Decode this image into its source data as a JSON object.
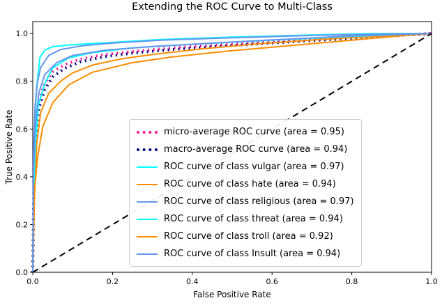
{
  "chart_data": {
    "type": "line",
    "title": "Extending the ROC Curve to Multi-Class",
    "xlabel": "False Positive Rate",
    "ylabel": "True Positive Rate",
    "xlim": [
      0,
      1.0
    ],
    "ylim": [
      0,
      1.05
    ],
    "x_ticks": [
      0.0,
      0.2,
      0.4,
      0.6,
      0.8,
      1.0
    ],
    "y_ticks": [
      0.0,
      0.2,
      0.4,
      0.6,
      0.8,
      1.0
    ],
    "grid": false,
    "legend_position": "inside lower-center-right",
    "reference_line": {
      "key": "chance_diagonal",
      "color": "#000000",
      "style": "dashed",
      "linewidth": 2,
      "points": [
        [
          0,
          0
        ],
        [
          1,
          1
        ]
      ]
    },
    "series": [
      {
        "key": "micro_average",
        "name": "micro-average ROC curve (area = 0.95)",
        "area": 0.95,
        "color": "#ff1493",
        "color_name": "deeppink",
        "style": "dotted",
        "linewidth": 4,
        "points": [
          [
            0,
            0
          ],
          [
            0.003,
            0.44
          ],
          [
            0.008,
            0.62
          ],
          [
            0.015,
            0.72
          ],
          [
            0.03,
            0.79
          ],
          [
            0.05,
            0.84
          ],
          [
            0.08,
            0.87
          ],
          [
            0.12,
            0.893
          ],
          [
            0.18,
            0.912
          ],
          [
            0.25,
            0.925
          ],
          [
            0.35,
            0.94
          ],
          [
            0.5,
            0.957
          ],
          [
            0.7,
            0.976
          ],
          [
            0.85,
            0.99
          ],
          [
            1,
            1
          ]
        ]
      },
      {
        "key": "macro_average",
        "name": "macro-average ROC curve (area = 0.94)",
        "area": 0.94,
        "color": "#000080",
        "color_name": "navy",
        "style": "dotted",
        "linewidth": 4,
        "points": [
          [
            0,
            0
          ],
          [
            0.003,
            0.4
          ],
          [
            0.008,
            0.57
          ],
          [
            0.015,
            0.685
          ],
          [
            0.03,
            0.765
          ],
          [
            0.05,
            0.818
          ],
          [
            0.08,
            0.855
          ],
          [
            0.12,
            0.882
          ],
          [
            0.18,
            0.903
          ],
          [
            0.25,
            0.918
          ],
          [
            0.35,
            0.933
          ],
          [
            0.5,
            0.95
          ],
          [
            0.7,
            0.97
          ],
          [
            0.85,
            0.985
          ],
          [
            1,
            1
          ]
        ]
      },
      {
        "key": "class_vulgar",
        "name": "ROC curve of class vulgar (area = 0.97)",
        "area": 0.97,
        "color": "#00ffff",
        "color_name": "aqua",
        "style": "solid",
        "linewidth": 2,
        "points": [
          [
            0,
            0
          ],
          [
            0.002,
            0.45
          ],
          [
            0.005,
            0.63
          ],
          [
            0.01,
            0.78
          ],
          [
            0.018,
            0.9
          ],
          [
            0.03,
            0.93
          ],
          [
            0.05,
            0.945
          ],
          [
            0.09,
            0.952
          ],
          [
            0.15,
            0.958
          ],
          [
            0.22,
            0.965
          ],
          [
            0.32,
            0.975
          ],
          [
            0.5,
            0.985
          ],
          [
            0.68,
            0.993
          ],
          [
            0.85,
            1
          ],
          [
            1,
            1
          ]
        ]
      },
      {
        "key": "class_hate",
        "name": "ROC curve of class hate (area = 0.94)",
        "area": 0.94,
        "color": "#ff8c00",
        "color_name": "darkorange",
        "style": "solid",
        "linewidth": 2,
        "points": [
          [
            0,
            0
          ],
          [
            0.004,
            0.3
          ],
          [
            0.01,
            0.54
          ],
          [
            0.02,
            0.67
          ],
          [
            0.04,
            0.75
          ],
          [
            0.07,
            0.8
          ],
          [
            0.1,
            0.835
          ],
          [
            0.15,
            0.868
          ],
          [
            0.22,
            0.893
          ],
          [
            0.3,
            0.912
          ],
          [
            0.42,
            0.935
          ],
          [
            0.55,
            0.955
          ],
          [
            0.72,
            0.975
          ],
          [
            0.88,
            0.99
          ],
          [
            1,
            1
          ]
        ]
      },
      {
        "key": "class_religious",
        "name": "ROC curve of class religious (area = 0.97)",
        "area": 0.97,
        "color": "#6495ed",
        "color_name": "cornflowerblue",
        "style": "solid",
        "linewidth": 2,
        "points": [
          [
            0,
            0
          ],
          [
            0.002,
            0.5
          ],
          [
            0.006,
            0.7
          ],
          [
            0.012,
            0.8
          ],
          [
            0.02,
            0.858
          ],
          [
            0.04,
            0.908
          ],
          [
            0.07,
            0.933
          ],
          [
            0.12,
            0.948
          ],
          [
            0.2,
            0.96
          ],
          [
            0.32,
            0.972
          ],
          [
            0.5,
            0.982
          ],
          [
            0.7,
            0.992
          ],
          [
            0.88,
            0.998
          ],
          [
            1,
            1
          ]
        ]
      },
      {
        "key": "class_threat",
        "name": "ROC curve of class threat (area = 0.94)",
        "area": 0.94,
        "color": "#00ffff",
        "color_name": "aqua",
        "style": "solid",
        "linewidth": 2,
        "points": [
          [
            0,
            0
          ],
          [
            0.003,
            0.38
          ],
          [
            0.007,
            0.55
          ],
          [
            0.014,
            0.7
          ],
          [
            0.03,
            0.79
          ],
          [
            0.05,
            0.856
          ],
          [
            0.09,
            0.898
          ],
          [
            0.15,
            0.92
          ],
          [
            0.25,
            0.94
          ],
          [
            0.4,
            0.955
          ],
          [
            0.6,
            0.972
          ],
          [
            0.8,
            0.988
          ],
          [
            1,
            1
          ]
        ]
      },
      {
        "key": "class_troll",
        "name": "ROC curve of class troll (area = 0.92)",
        "area": 0.92,
        "color": "#ff8c00",
        "color_name": "darkorange",
        "style": "solid",
        "linewidth": 2,
        "points": [
          [
            0,
            0
          ],
          [
            0.004,
            0.34
          ],
          [
            0.012,
            0.48
          ],
          [
            0.025,
            0.61
          ],
          [
            0.05,
            0.71
          ],
          [
            0.09,
            0.785
          ],
          [
            0.15,
            0.838
          ],
          [
            0.25,
            0.878
          ],
          [
            0.35,
            0.902
          ],
          [
            0.5,
            0.928
          ],
          [
            0.65,
            0.95
          ],
          [
            0.8,
            0.972
          ],
          [
            0.92,
            0.99
          ],
          [
            1,
            1
          ]
        ]
      },
      {
        "key": "class_insult",
        "name": "ROC curve of class Insult (area = 0.94)",
        "area": 0.94,
        "color": "#6495ed",
        "color_name": "cornflowerblue",
        "style": "solid",
        "linewidth": 2,
        "points": [
          [
            0,
            0
          ],
          [
            0.002,
            0.42
          ],
          [
            0.006,
            0.6
          ],
          [
            0.015,
            0.75
          ],
          [
            0.03,
            0.828
          ],
          [
            0.06,
            0.878
          ],
          [
            0.1,
            0.908
          ],
          [
            0.18,
            0.93
          ],
          [
            0.3,
            0.946
          ],
          [
            0.45,
            0.96
          ],
          [
            0.62,
            0.975
          ],
          [
            0.8,
            0.99
          ],
          [
            1,
            1
          ]
        ]
      }
    ]
  }
}
